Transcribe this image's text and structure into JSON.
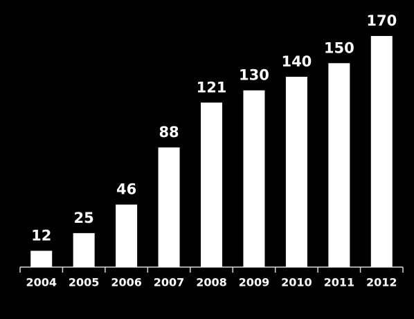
{
  "chart_data": {
    "type": "bar",
    "categories": [
      "2004",
      "2005",
      "2006",
      "2007",
      "2008",
      "2009",
      "2010",
      "2011",
      "2012"
    ],
    "values": [
      12,
      25,
      46,
      88,
      121,
      130,
      140,
      150,
      170
    ],
    "color": "#ffffff"
  }
}
